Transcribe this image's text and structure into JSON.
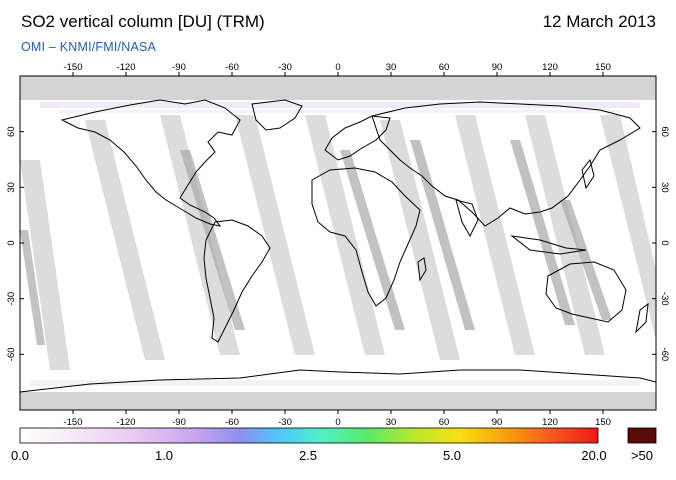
{
  "title": "SO2 vertical column [DU] (TRM)",
  "date": "12 March 2013",
  "credit": "OMI  –  KNMI/FMI/NASA",
  "map": {
    "lon_ticks": [
      "-150",
      "-120",
      "-90",
      "-60",
      "-30",
      "0",
      "30",
      "60",
      "90",
      "120",
      "150"
    ],
    "lat_ticks_left": [
      "60",
      "30",
      "0",
      "-30",
      "-60"
    ],
    "lat_ticks_right": [
      "60",
      "30",
      "0",
      "-30",
      "-60"
    ]
  },
  "colorbar": {
    "labels": [
      "0.0",
      "1.0",
      "2.5",
      "5.0",
      "20.0"
    ],
    "over_label": ">50",
    "colors": [
      "#ffffff",
      "#f6e8f7",
      "#e7c7f0",
      "#c9a7ee",
      "#8f8ef0",
      "#50c8f8",
      "#4ff0c8",
      "#58e868",
      "#b8e830",
      "#f8e010",
      "#f8a010",
      "#f85820",
      "#f01818"
    ],
    "over_color": "#5a0a08"
  }
}
